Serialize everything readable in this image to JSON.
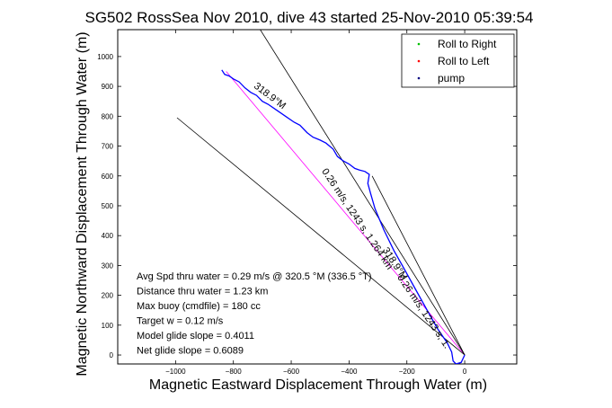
{
  "chart_data": {
    "type": "line",
    "title": "SG502 RossSea Nov 2010, dive 43 started 25-Nov-2010 05:39:54",
    "xlabel": "Magnetic Eastward Displacement Through Water (m)",
    "ylabel": "Magnetic Northward Displacement Through Water (m)",
    "xlim": [
      -1200,
      180
    ],
    "ylim": [
      -30,
      1090
    ],
    "xticks": [
      -1000,
      -800,
      -600,
      -400,
      -200,
      0
    ],
    "xtick_labels": [
      "−1000",
      "−800",
      "−600",
      "−400",
      "−200",
      "0"
    ],
    "yticks": [
      0,
      100,
      200,
      300,
      400,
      500,
      600,
      700,
      800,
      900,
      1000
    ],
    "ytick_labels": [
      "0",
      "100",
      "200",
      "300",
      "400",
      "500",
      "600",
      "700",
      "800",
      "900",
      "1000"
    ],
    "legend_position": "top-right",
    "legend": [
      {
        "label": "Roll to Right",
        "color": "#00c000"
      },
      {
        "label": "Roll to Left",
        "color": "#ff0000"
      },
      {
        "label": "pump",
        "color": "#000080"
      }
    ],
    "series": [
      {
        "color": "#0000ff",
        "x": [
          0,
          -12,
          -30,
          -40,
          -45,
          -60,
          -95,
          -130,
          -170,
          -210,
          -245,
          -280,
          -310,
          -325,
          -335,
          -330,
          -345,
          -365,
          -380,
          -400,
          -420,
          -440,
          -455,
          -480,
          -500,
          -525,
          -545,
          -570,
          -590,
          -620,
          -650,
          -680,
          -700,
          -720,
          -740,
          -760,
          -780,
          -800,
          -815,
          -830,
          -840
        ],
        "y": [
          0,
          -25,
          -30,
          -20,
          10,
          40,
          90,
          150,
          220,
          290,
          350,
          420,
          490,
          540,
          575,
          605,
          615,
          620,
          625,
          640,
          650,
          665,
          690,
          710,
          720,
          730,
          745,
          770,
          780,
          800,
          820,
          840,
          850,
          870,
          880,
          895,
          915,
          925,
          935,
          940,
          955
        ]
      }
    ],
    "reference_lines": [
      {
        "color": "#ff00ff",
        "x": [
          0,
          -825
        ],
        "y": [
          0,
          950
        ]
      },
      {
        "color": "#000000",
        "x": [
          0,
          -995
        ],
        "y": [
          0,
          795
        ]
      },
      {
        "color": "#000000",
        "x": [
          0,
          -720
        ],
        "y": [
          0,
          1110
        ]
      },
      {
        "color": "#000000",
        "x": [
          -320,
          0
        ],
        "y": [
          600,
          0
        ]
      }
    ],
    "annotations": [
      {
        "text": "318.9°M",
        "x": -680,
        "y": 860,
        "angle": 37
      },
      {
        "text": "0.26 m/s, 1243 s, 1.264 km",
        "x": -380,
        "y": 450,
        "angle": 56
      },
      {
        "text": "318.9°M",
        "x": -250,
        "y": 300,
        "angle": 57
      },
      {
        "text": "0.26 m/s, 1243 s, 1.",
        "x": -150,
        "y": 140,
        "angle": 56
      }
    ],
    "stats": [
      "Avg Spd thru water =  0.29 m/s @ 320.5 °M (336.5 °T)",
      "Distance thru water =  1.23 km",
      "Max buoy (cmdfile) = 180 cc",
      "Target w = 0.12 m/s",
      "Model glide slope = 0.4011",
      "Net glide slope = 0.6089"
    ]
  }
}
